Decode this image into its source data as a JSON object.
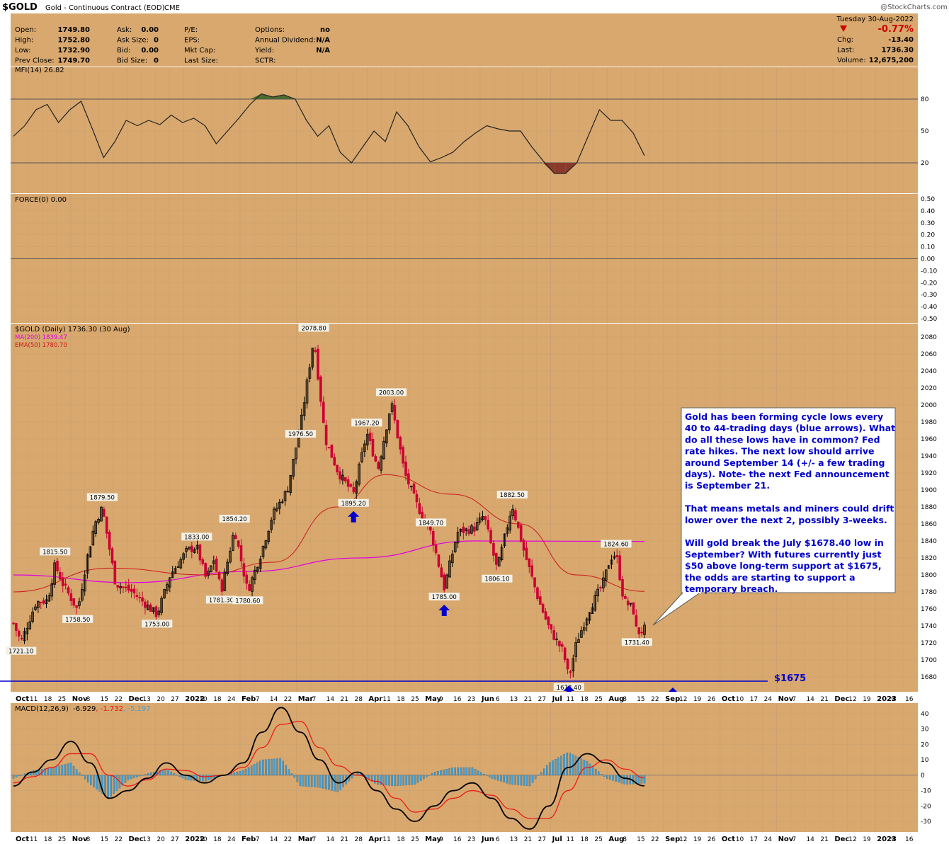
{
  "header": {
    "symbol": "$GOLD",
    "description": "Gold - Continuous Contract (EOD)",
    "exchange": "CME",
    "watermark": "@StockCharts.com",
    "date": "Tuesday 30-Aug-2022"
  },
  "quote_left": {
    "labels": [
      "Open:",
      "High:",
      "Low:",
      "Prev Close:"
    ],
    "values": [
      "1749.80",
      "1752.80",
      "1732.90",
      "1749.70"
    ]
  },
  "quote_mid": {
    "labels": [
      "Ask:",
      "Ask Size:",
      "Bid:",
      "Bid Size:"
    ],
    "values": [
      "0.00",
      "0",
      "0.00",
      "0"
    ]
  },
  "quote_mid2": {
    "labels": [
      "P/E:",
      "EPS:",
      "Mkt Cap:",
      "Last Size:"
    ],
    "values": [
      "",
      "",
      "",
      ""
    ]
  },
  "quote_opt": {
    "labels": [
      "Options:",
      "Annual Dividend:",
      "Yield:",
      "SCTR:"
    ],
    "values": [
      "no",
      "N/A",
      "N/A",
      ""
    ]
  },
  "quote_right": {
    "change_pct": "-0.77%",
    "labels": [
      "Chg:",
      "Last:",
      "Volume:"
    ],
    "values": [
      "-13.40",
      "1736.30",
      "12,675,200"
    ]
  },
  "colors": {
    "panel_bg": "#d8a86e",
    "grid": "#c9a170",
    "candle_up": "#000000",
    "candle_down": "#cc0033",
    "ma200": "#e000e0",
    "ema50": "#cc1a1a",
    "mfi_line": "#222222",
    "mfi_over": "#4a6a30",
    "mfi_under": "#8a3a2a",
    "macd_hist": "#4a9fd0",
    "macd_line": "#000000",
    "signal_line": "#ee1111",
    "accent_blue": "#0000cc",
    "price_down": "#cc0000"
  },
  "mfi_panel": {
    "label": "MFI(14) 26.82",
    "axis_ticks": [
      "80",
      "50",
      "20"
    ]
  },
  "force_panel": {
    "label": "FORCE(0) 0.00",
    "axis_ticks": [
      "0.50",
      "0.40",
      "0.30",
      "0.20",
      "0.10",
      "0.00",
      "-0.10",
      "-0.20",
      "-0.30",
      "-0.40",
      "-0.50"
    ]
  },
  "price_panel": {
    "label": "$GOLD (Daily) 1736.30 (30 Aug)",
    "ma200_label": "MA(200) 1839.47",
    "ema50_label": "EMA(50) 1780.70",
    "support_label": "$1675",
    "question_mark": "?",
    "annotation": [
      "Gold has been forming cycle lows every",
      "40 to 44-trading days (blue arrows). What",
      "do all these lows have in common? Fed",
      "rate hikes. The next low should arrive",
      "around September 14 (+/- a few trading",
      "days). Note- the next Fed announcement",
      "is September 21.",
      "",
      "That means metals and miners could drift",
      "lower over the next 2, possibly 3-weeks.",
      "",
      "Will gold break the July $1678.40 low in",
      "September? With futures currently just",
      "$50 above long-term support at $1675,",
      "the odds are starting to support a",
      "temporary breach."
    ]
  },
  "x_axis_labels": [
    {
      "t": "Oct",
      "b": true
    },
    {
      "t": "11"
    },
    {
      "t": "18"
    },
    {
      "t": "25"
    },
    {
      "t": "Nov",
      "b": true
    },
    {
      "t": "8"
    },
    {
      "t": "15"
    },
    {
      "t": "22"
    },
    {
      "t": "Dec",
      "b": true
    },
    {
      "t": "13"
    },
    {
      "t": "20"
    },
    {
      "t": "27"
    },
    {
      "t": "2022",
      "b": true
    },
    {
      "t": "10"
    },
    {
      "t": "18"
    },
    {
      "t": "24"
    },
    {
      "t": "Feb",
      "b": true
    },
    {
      "t": "7"
    },
    {
      "t": "14"
    },
    {
      "t": "22"
    },
    {
      "t": "Mar",
      "b": true
    },
    {
      "t": "7"
    },
    {
      "t": "14"
    },
    {
      "t": "21"
    },
    {
      "t": "28"
    },
    {
      "t": "Apr",
      "b": true
    },
    {
      "t": "11"
    },
    {
      "t": "18"
    },
    {
      "t": "25"
    },
    {
      "t": "May",
      "b": true
    },
    {
      "t": "9"
    },
    {
      "t": "16"
    },
    {
      "t": "23"
    },
    {
      "t": "Jun",
      "b": true
    },
    {
      "t": "6"
    },
    {
      "t": "13"
    },
    {
      "t": "21"
    },
    {
      "t": "27"
    },
    {
      "t": "Jul",
      "b": true
    },
    {
      "t": "11"
    },
    {
      "t": "18"
    },
    {
      "t": "25"
    },
    {
      "t": "Aug",
      "b": true
    },
    {
      "t": "8"
    },
    {
      "t": "15"
    },
    {
      "t": "22"
    },
    {
      "t": "Sep",
      "b": true
    },
    {
      "t": "12"
    },
    {
      "t": "19"
    },
    {
      "t": "26"
    },
    {
      "t": "Oct",
      "b": true
    },
    {
      "t": "10"
    },
    {
      "t": "17"
    },
    {
      "t": "24"
    },
    {
      "t": "Nov",
      "b": true
    },
    {
      "t": "7"
    },
    {
      "t": "14"
    },
    {
      "t": "21"
    },
    {
      "t": "Dec",
      "b": true
    },
    {
      "t": "12"
    },
    {
      "t": "19"
    },
    {
      "t": "2023",
      "b": true
    },
    {
      "t": "9"
    },
    {
      "t": "16"
    }
  ],
  "macd_panel": {
    "label_prefix": "MACD(12,26,9)",
    "macd_value": "-6.929",
    "signal_value": "-1.732",
    "hist_value": "-5.197",
    "axis_ticks": [
      "40",
      "30",
      "20",
      "10",
      "0",
      "-10",
      "-20",
      "-30"
    ]
  },
  "chart_data": {
    "type": "candlestick",
    "title": "$GOLD (Daily) 1736.30 (30 Aug)",
    "ylim": [
      1666,
      2090
    ],
    "y_ticks": [
      1680,
      1700,
      1720,
      1740,
      1760,
      1780,
      1800,
      1820,
      1840,
      1860,
      1880,
      1900,
      1920,
      1940,
      1960,
      1980,
      2000,
      2020,
      2040,
      2060,
      2080
    ],
    "price_path": [
      [
        "2021-09-30",
        1743
      ],
      [
        "2021-10-04",
        1721.1
      ],
      [
        "2021-10-12",
        1768
      ],
      [
        "2021-10-18",
        1770
      ],
      [
        "2021-10-22",
        1812
      ],
      [
        "2021-10-26",
        1790
      ],
      [
        "2021-11-03",
        1758.5
      ],
      [
        "2021-11-08",
        1820
      ],
      [
        "2021-11-12",
        1860
      ],
      [
        "2021-11-16",
        1879.5
      ],
      [
        "2021-11-23",
        1790
      ],
      [
        "2021-12-02",
        1780
      ],
      [
        "2021-12-15",
        1753
      ],
      [
        "2021-12-22",
        1800
      ],
      [
        "2021-12-31",
        1829
      ],
      [
        "2022-01-05",
        1833
      ],
      [
        "2022-01-10",
        1795
      ],
      [
        "2022-01-14",
        1818
      ],
      [
        "2022-01-18",
        1781.3
      ],
      [
        "2022-01-25",
        1854.2
      ],
      [
        "2022-02-01",
        1780.6
      ],
      [
        "2022-02-08",
        1825
      ],
      [
        "2022-02-14",
        1870
      ],
      [
        "2022-02-22",
        1900
      ],
      [
        "2022-03-01",
        1976.5
      ],
      [
        "2022-03-08",
        2078.8
      ],
      [
        "2022-03-14",
        1960
      ],
      [
        "2022-03-21",
        1920
      ],
      [
        "2022-03-29",
        1895.2
      ],
      [
        "2022-04-05",
        1967.2
      ],
      [
        "2022-04-11",
        1925
      ],
      [
        "2022-04-18",
        2003
      ],
      [
        "2022-04-25",
        1920
      ],
      [
        "2022-05-02",
        1880
      ],
      [
        "2022-05-09",
        1849.7
      ],
      [
        "2022-05-16",
        1785
      ],
      [
        "2022-05-23",
        1850
      ],
      [
        "2022-06-01",
        1855
      ],
      [
        "2022-06-06",
        1870
      ],
      [
        "2022-06-13",
        1806.1
      ],
      [
        "2022-06-21",
        1882.5
      ],
      [
        "2022-06-27",
        1830
      ],
      [
        "2022-07-05",
        1770
      ],
      [
        "2022-07-11",
        1735
      ],
      [
        "2022-07-18",
        1710
      ],
      [
        "2022-07-21",
        1678.4
      ],
      [
        "2022-07-25",
        1720
      ],
      [
        "2022-08-01",
        1760
      ],
      [
        "2022-08-08",
        1790
      ],
      [
        "2022-08-12",
        1820
      ],
      [
        "2022-08-15",
        1824.6
      ],
      [
        "2022-08-19",
        1770
      ],
      [
        "2022-08-24",
        1760
      ],
      [
        "2022-08-26",
        1731.4
      ],
      [
        "2022-08-30",
        1736.3
      ]
    ],
    "ma200": [
      [
        "2021-09-30",
        1800
      ],
      [
        "2021-12-01",
        1791
      ],
      [
        "2022-02-01",
        1804
      ],
      [
        "2022-04-01",
        1820
      ],
      [
        "2022-06-01",
        1840
      ],
      [
        "2022-08-30",
        1839.47
      ]
    ],
    "ema50": [
      [
        "2021-09-30",
        1780
      ],
      [
        "2021-11-20",
        1808
      ],
      [
        "2022-01-10",
        1800
      ],
      [
        "2022-02-15",
        1815
      ],
      [
        "2022-03-20",
        1880
      ],
      [
        "2022-04-15",
        1918
      ],
      [
        "2022-05-20",
        1895
      ],
      [
        "2022-06-25",
        1860
      ],
      [
        "2022-07-25",
        1800
      ],
      [
        "2022-08-30",
        1780.7
      ]
    ],
    "price_annotations": [
      {
        "date": "2021-10-04",
        "value": "1721.10"
      },
      {
        "date": "2021-10-22",
        "value": "1815.50"
      },
      {
        "date": "2021-11-03",
        "value": "1758.50"
      },
      {
        "date": "2021-11-16",
        "value": "1879.50"
      },
      {
        "date": "2021-12-15",
        "value": "1753.00"
      },
      {
        "date": "2022-01-05",
        "value": "1833.00"
      },
      {
        "date": "2022-01-18",
        "value": "1781.30"
      },
      {
        "date": "2022-01-25",
        "value": "1854.20"
      },
      {
        "date": "2022-02-01",
        "value": "1780.60"
      },
      {
        "date": "2022-03-01",
        "value": "1976.50"
      },
      {
        "date": "2022-03-08",
        "value": "2078.80"
      },
      {
        "date": "2022-03-29",
        "value": "1895.20"
      },
      {
        "date": "2022-04-05",
        "value": "1967.20"
      },
      {
        "date": "2022-04-18",
        "value": "2003.00"
      },
      {
        "date": "2022-05-09",
        "value": "1849.70"
      },
      {
        "date": "2022-05-16",
        "value": "1785.00"
      },
      {
        "date": "2022-06-13",
        "value": "1806.10"
      },
      {
        "date": "2022-06-21",
        "value": "1882.50"
      },
      {
        "date": "2022-07-21",
        "value": "1678.40"
      },
      {
        "date": "2022-08-15",
        "value": "1824.60"
      },
      {
        "date": "2022-08-26",
        "value": "1731.40"
      }
    ],
    "support_level": 1675,
    "cycle_low_arrows": [
      {
        "date": "2022-03-29"
      },
      {
        "date": "2022-05-16"
      },
      {
        "date": "2022-07-21"
      },
      {
        "date": "2022-09-14",
        "projected": true
      }
    ],
    "mfi": {
      "ylim": [
        0,
        100
      ],
      "values": [
        [
          0,
          45
        ],
        [
          4,
          55
        ],
        [
          8,
          70
        ],
        [
          12,
          75
        ],
        [
          16,
          58
        ],
        [
          20,
          70
        ],
        [
          24,
          78
        ],
        [
          28,
          52
        ],
        [
          32,
          25
        ],
        [
          36,
          40
        ],
        [
          40,
          60
        ],
        [
          44,
          55
        ],
        [
          48,
          60
        ],
        [
          52,
          56
        ],
        [
          56,
          65
        ],
        [
          60,
          58
        ],
        [
          64,
          62
        ],
        [
          68,
          55
        ],
        [
          72,
          38
        ],
        [
          76,
          50
        ],
        [
          80,
          62
        ],
        [
          84,
          75
        ],
        [
          88,
          85
        ],
        [
          92,
          82
        ],
        [
          96,
          84
        ],
        [
          100,
          80
        ],
        [
          104,
          60
        ],
        [
          108,
          45
        ],
        [
          112,
          55
        ],
        [
          116,
          30
        ],
        [
          120,
          20
        ],
        [
          124,
          35
        ],
        [
          128,
          50
        ],
        [
          132,
          40
        ],
        [
          136,
          68
        ],
        [
          140,
          55
        ],
        [
          144,
          35
        ],
        [
          148,
          21
        ],
        [
          152,
          25
        ],
        [
          156,
          30
        ],
        [
          160,
          40
        ],
        [
          164,
          48
        ],
        [
          168,
          55
        ],
        [
          172,
          52
        ],
        [
          176,
          50
        ],
        [
          180,
          50
        ],
        [
          184,
          35
        ],
        [
          188,
          22
        ],
        [
          192,
          10
        ],
        [
          196,
          10
        ],
        [
          200,
          20
        ],
        [
          204,
          45
        ],
        [
          208,
          70
        ],
        [
          212,
          60
        ],
        [
          216,
          60
        ],
        [
          220,
          48
        ],
        [
          224,
          26.82
        ]
      ]
    },
    "macd": {
      "ylim": [
        -36,
        46
      ],
      "macd": [
        [
          0,
          -7
        ],
        [
          10,
          2
        ],
        [
          20,
          10
        ],
        [
          30,
          22
        ],
        [
          40,
          8
        ],
        [
          50,
          -15
        ],
        [
          60,
          -10
        ],
        [
          70,
          -2
        ],
        [
          80,
          8
        ],
        [
          90,
          0
        ],
        [
          100,
          -5
        ],
        [
          110,
          0
        ],
        [
          120,
          8
        ],
        [
          130,
          28
        ],
        [
          140,
          44
        ],
        [
          150,
          28
        ],
        [
          160,
          10
        ],
        [
          170,
          -5
        ],
        [
          180,
          2
        ],
        [
          190,
          -10
        ],
        [
          200,
          -22
        ],
        [
          210,
          -30
        ],
        [
          220,
          -20
        ],
        [
          230,
          -10
        ],
        [
          240,
          -5
        ],
        [
          250,
          -15
        ],
        [
          260,
          -28
        ],
        [
          270,
          -35
        ],
        [
          280,
          -20
        ],
        [
          290,
          5
        ],
        [
          300,
          14
        ],
        [
          310,
          8
        ],
        [
          320,
          -2
        ],
        [
          330,
          -6.929
        ]
      ],
      "signal": [
        [
          0,
          -5
        ],
        [
          10,
          -1
        ],
        [
          20,
          5
        ],
        [
          30,
          14
        ],
        [
          40,
          14
        ],
        [
          50,
          0
        ],
        [
          60,
          -7
        ],
        [
          70,
          -3
        ],
        [
          80,
          4
        ],
        [
          90,
          3
        ],
        [
          100,
          -1
        ],
        [
          110,
          0
        ],
        [
          120,
          5
        ],
        [
          130,
          18
        ],
        [
          140,
          33
        ],
        [
          150,
          35
        ],
        [
          160,
          18
        ],
        [
          170,
          6
        ],
        [
          180,
          0
        ],
        [
          190,
          -4
        ],
        [
          200,
          -15
        ],
        [
          210,
          -24
        ],
        [
          220,
          -22
        ],
        [
          230,
          -15
        ],
        [
          240,
          -10
        ],
        [
          250,
          -13
        ],
        [
          260,
          -22
        ],
        [
          270,
          -28
        ],
        [
          280,
          -28
        ],
        [
          290,
          -10
        ],
        [
          300,
          5
        ],
        [
          310,
          10
        ],
        [
          320,
          4
        ],
        [
          330,
          -1.732
        ]
      ]
    }
  }
}
